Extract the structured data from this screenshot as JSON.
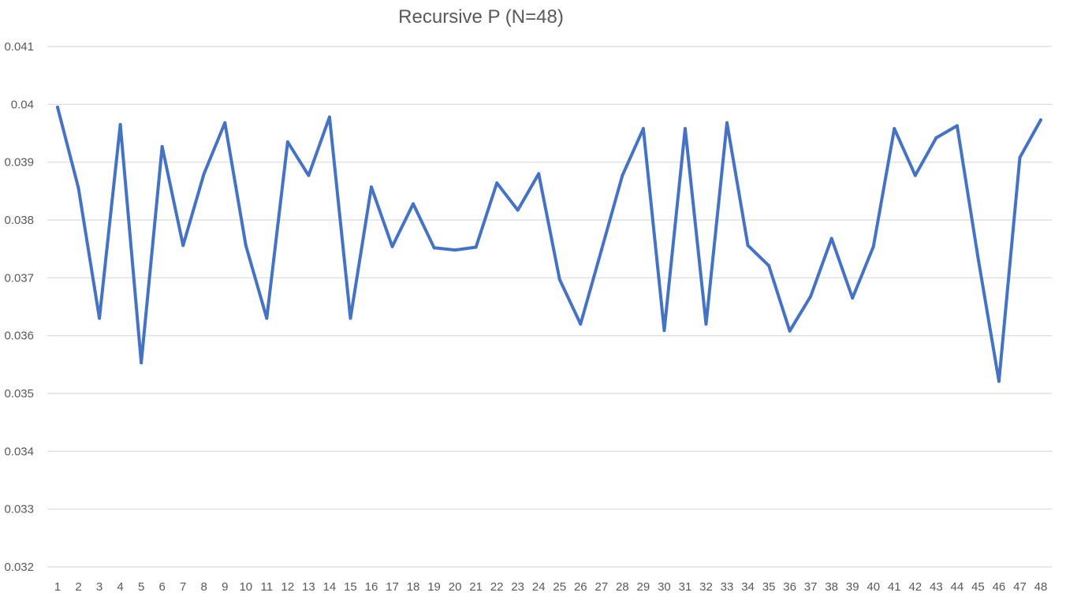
{
  "chart_data": {
    "type": "line",
    "title": "Recursive P (N=48)",
    "xlabel": "",
    "ylabel": "",
    "ylim": [
      0.032,
      0.041
    ],
    "yticks": [
      "0.032",
      "0.033",
      "0.034",
      "0.035",
      "0.036",
      "0.037",
      "0.038",
      "0.039",
      "0.04",
      "0.041"
    ],
    "grid": true,
    "legend": "none",
    "categories": [
      "1",
      "2",
      "3",
      "4",
      "5",
      "6",
      "7",
      "8",
      "9",
      "10",
      "11",
      "12",
      "13",
      "14",
      "15",
      "16",
      "17",
      "18",
      "19",
      "20",
      "21",
      "22",
      "23",
      "24",
      "25",
      "26",
      "27",
      "28",
      "29",
      "30",
      "31",
      "32",
      "33",
      "34",
      "35",
      "36",
      "37",
      "38",
      "39",
      "40",
      "41",
      "42",
      "43",
      "44",
      "45",
      "46",
      "47",
      "48"
    ],
    "series": [
      {
        "color": "#4472c4",
        "values": [
          0.03995,
          0.03855,
          0.0363,
          0.03965,
          0.03553,
          0.03927,
          0.03756,
          0.0388,
          0.03968,
          0.03756,
          0.0363,
          0.03935,
          0.03877,
          0.03978,
          0.0363,
          0.03857,
          0.03754,
          0.03828,
          0.03752,
          0.03748,
          0.03753,
          0.03864,
          0.03817,
          0.0388,
          0.03697,
          0.0362,
          0.03748,
          0.03877,
          0.03958,
          0.03609,
          0.03958,
          0.0362,
          0.03968,
          0.03756,
          0.03721,
          0.03608,
          0.03668,
          0.03768,
          0.03665,
          0.03754,
          0.03958,
          0.03877,
          0.03942,
          0.03963,
          0.03735,
          0.03521,
          0.03908,
          0.03973
        ]
      }
    ]
  }
}
